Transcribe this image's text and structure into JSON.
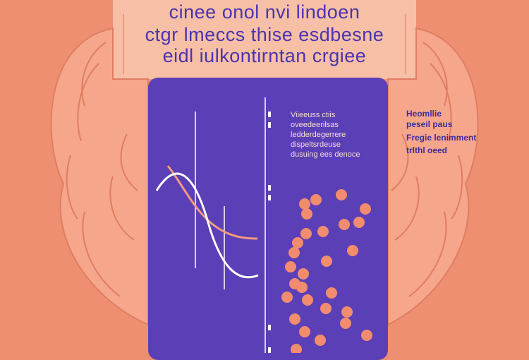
{
  "headline": {
    "line1": "cinee onol nvi lindoen",
    "line2": "ctgr lmeccs thise esdbesne",
    "line3": "eidl iulkontirntan crgiee"
  },
  "panel_notes": [
    "Viieeuss ctiis",
    "oveedeerilsas",
    "ledderdegerrere",
    "dispeltsrdeuse",
    "dusuing ees denoce"
  ],
  "side_notes": [
    "Heomllie",
    "peseil paus",
    "Fregie lenimment",
    "trlthl oeed"
  ],
  "colors": {
    "background": "#ef8f72",
    "panel": "#5b3fb6",
    "text_primary": "#4a34b0",
    "curve_white": "#ffffff",
    "curve_peach": "#f39a80",
    "dots": "#f28c6f"
  }
}
